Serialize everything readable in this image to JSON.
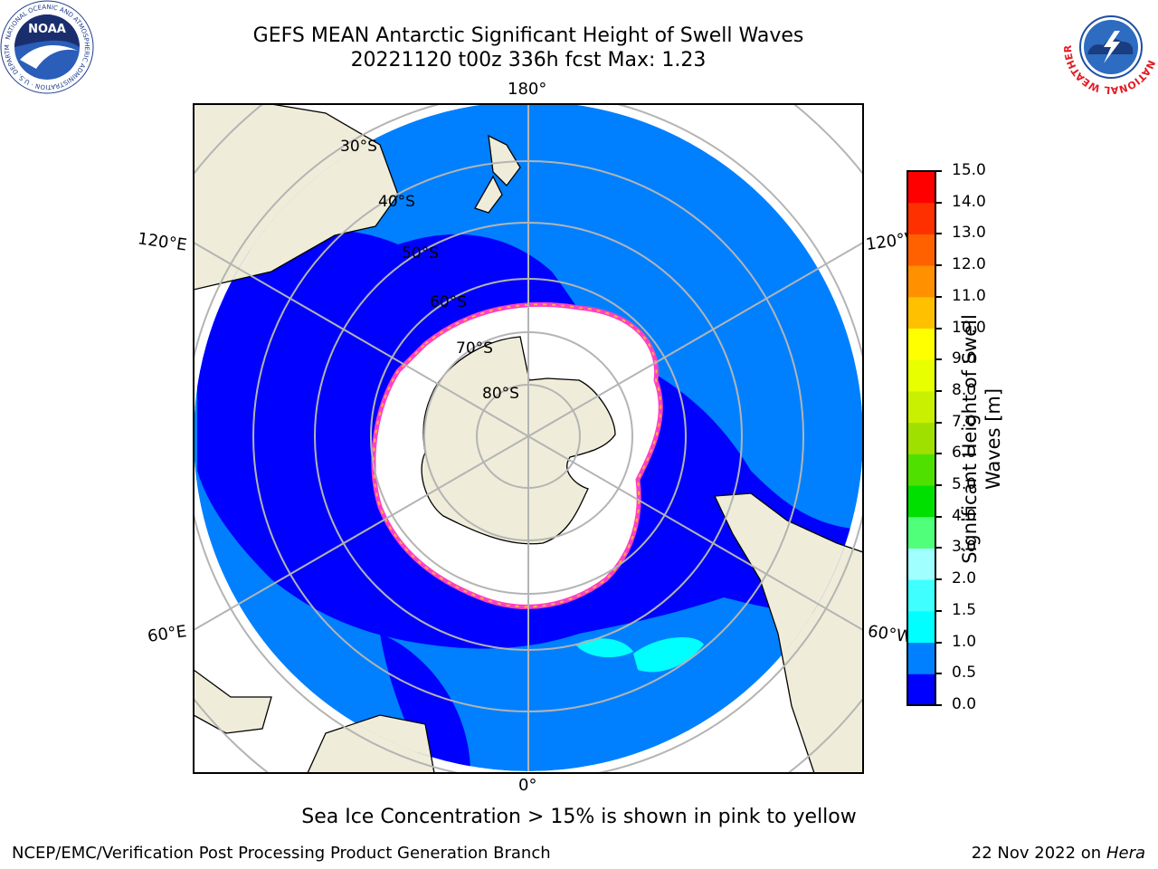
{
  "header": {
    "title_line1": "GEFS MEAN Antarctic Significant Height of Swell Waves",
    "title_line2": "20221120 t00z 336h fcst   Max: 1.23"
  },
  "logos": {
    "left": {
      "icon": "noaa-logo",
      "text": "NOAA",
      "ring_text": "NATIONAL OCEANIC AND ATMOSPHERIC ADMINISTRATION · U.S. DEPARTMENT OF COMMERCE"
    },
    "right": {
      "icon": "nws-logo",
      "ring_text": "NATIONAL WEATHER SERVICE"
    }
  },
  "map": {
    "projection": "south-polar-stereographic",
    "longitude_labels": {
      "top": "180°",
      "bottom": "0°",
      "upper_left": "120°E",
      "lower_left": "60°E",
      "upper_right": "120°W",
      "lower_right": "60°W"
    },
    "latitude_labels": [
      "30°S",
      "40°S",
      "50°S",
      "60°S",
      "70°S",
      "80°S"
    ],
    "colors": {
      "land": "#efedd9",
      "ice": "#ffffff",
      "swell_0_0p5": "#0000ff",
      "swell_0p5_1": "#0080ff",
      "swell_1_1p5": "#00ffff",
      "grid": "#b4b4b4"
    }
  },
  "colorbar": {
    "title_line1": "Significant Height of Swell",
    "title_line2": "Waves [m]",
    "ticks": [
      "0.0",
      "0.5",
      "1.0",
      "1.5",
      "2.0",
      "3.0",
      "4.0",
      "5.0",
      "6.0",
      "7.0",
      "8.0",
      "9.0",
      "10.0",
      "11.0",
      "12.0",
      "13.0",
      "14.0",
      "15.0"
    ],
    "colors": [
      "#0000ff",
      "#0080ff",
      "#00ffff",
      "#40ffff",
      "#a0ffff",
      "#50ff7a",
      "#00e000",
      "#50e000",
      "#a0e000",
      "#c8f000",
      "#e8ff00",
      "#ffff00",
      "#ffc000",
      "#ff9000",
      "#ff6000",
      "#ff3000",
      "#ff0000"
    ]
  },
  "footer": {
    "note": "Sea Ice Concentration > 15% is shown in pink to yellow",
    "left": "NCEP/EMC/Verification Post Processing Product Generation Branch",
    "right_date": "22 Nov 2022 on",
    "right_host": "Hera"
  }
}
